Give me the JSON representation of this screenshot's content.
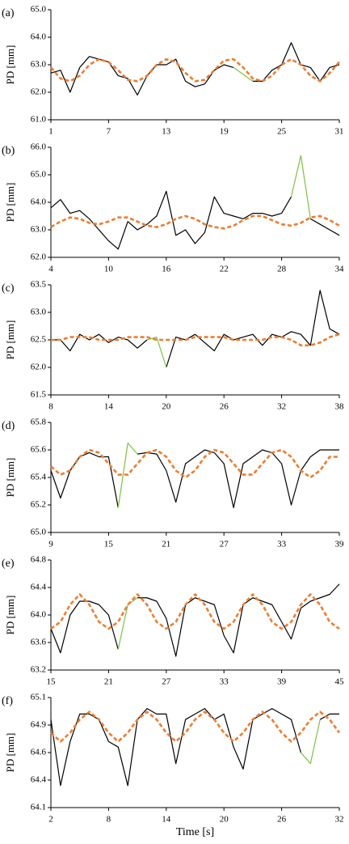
{
  "chart_data": [
    {
      "type": "line",
      "panel_label": "(a)",
      "ylabel": "PD [mm]",
      "x": [
        1,
        2,
        3,
        4,
        5,
        6,
        7,
        8,
        9,
        10,
        11,
        12,
        13,
        14,
        15,
        16,
        17,
        18,
        19,
        20,
        21,
        22,
        23,
        24,
        25,
        26,
        27,
        28,
        29,
        30,
        31
      ],
      "xlim": [
        1,
        31
      ],
      "xticks": [
        1,
        7,
        13,
        19,
        25,
        31
      ],
      "ylim": [
        61,
        65
      ],
      "yticks": [
        {
          "value": 61,
          "label": "61.0"
        },
        {
          "value": 62,
          "label": "62.0"
        },
        {
          "value": 63,
          "label": "63.0"
        },
        {
          "value": 64,
          "label": "64.0"
        },
        {
          "value": 65,
          "label": "65.0"
        }
      ],
      "series": [
        {
          "color": "#000000",
          "values": [
            62.7,
            62.8,
            62.0,
            62.9,
            63.3,
            63.2,
            63.1,
            62.6,
            62.5,
            61.9,
            62.6,
            63.0,
            63.0,
            63.2,
            62.4,
            62.2,
            62.3,
            62.8,
            63.0,
            62.9,
            null,
            62.4,
            62.4,
            62.8,
            63.0,
            63.8,
            63.0,
            62.9,
            62.4,
            62.9,
            63.0
          ]
        },
        {
          "color": "#7cc242",
          "values": [
            null,
            null,
            null,
            null,
            null,
            null,
            null,
            null,
            null,
            null,
            null,
            null,
            null,
            null,
            null,
            null,
            null,
            null,
            null,
            62.9,
            62.65,
            62.4,
            null,
            null,
            null,
            null,
            null,
            null,
            null,
            null,
            null
          ]
        },
        {
          "color": "#ed7d31",
          "dash": true,
          "values": [
            62.9,
            62.5,
            62.4,
            62.6,
            63.0,
            63.2,
            63.1,
            62.8,
            62.45,
            62.4,
            62.6,
            63.0,
            63.2,
            63.1,
            62.7,
            62.4,
            62.45,
            62.8,
            63.15,
            63.2,
            62.9,
            62.5,
            62.4,
            62.6,
            63.0,
            63.2,
            63.0,
            62.6,
            62.4,
            62.7,
            63.1
          ]
        }
      ]
    },
    {
      "type": "line",
      "panel_label": "(b)",
      "ylabel": "PD [mm]",
      "x": [
        4,
        5,
        6,
        7,
        8,
        9,
        10,
        11,
        12,
        13,
        14,
        15,
        16,
        17,
        18,
        19,
        20,
        21,
        22,
        23,
        24,
        25,
        26,
        27,
        28,
        29,
        30,
        31,
        32,
        33,
        34
      ],
      "xlim": [
        4,
        34
      ],
      "xticks": [
        4,
        10,
        16,
        22,
        28,
        34
      ],
      "ylim": [
        62,
        66
      ],
      "yticks": [
        {
          "value": 62,
          "label": "62.0"
        },
        {
          "value": 63,
          "label": "63.0"
        },
        {
          "value": 64,
          "label": "64.0"
        },
        {
          "value": 65,
          "label": "65.0"
        },
        {
          "value": 66,
          "label": "66.0"
        }
      ],
      "series": [
        {
          "color": "#000000",
          "values": [
            63.8,
            64.1,
            63.6,
            63.7,
            63.4,
            63.0,
            62.6,
            62.3,
            63.3,
            63.0,
            63.2,
            63.5,
            64.4,
            62.8,
            63.0,
            62.5,
            62.9,
            64.2,
            63.6,
            63.5,
            63.4,
            63.6,
            63.6,
            63.5,
            63.6,
            64.2,
            null,
            63.4,
            63.2,
            63.0,
            62.8
          ]
        },
        {
          "color": "#7cc242",
          "values": [
            null,
            null,
            null,
            null,
            null,
            null,
            null,
            null,
            null,
            null,
            null,
            null,
            null,
            null,
            null,
            null,
            null,
            null,
            null,
            null,
            null,
            null,
            null,
            null,
            null,
            64.2,
            65.7,
            63.4,
            null,
            null,
            null
          ]
        },
        {
          "color": "#ed7d31",
          "dash": true,
          "values": [
            63.1,
            63.3,
            63.45,
            63.4,
            63.25,
            63.2,
            63.3,
            63.45,
            63.45,
            63.3,
            63.15,
            63.1,
            63.2,
            63.4,
            63.5,
            63.4,
            63.2,
            63.1,
            63.05,
            63.15,
            63.35,
            63.5,
            63.5,
            63.35,
            63.2,
            63.15,
            63.25,
            63.45,
            63.5,
            63.35,
            63.15
          ]
        }
      ]
    },
    {
      "type": "line",
      "panel_label": "(c)",
      "ylabel": "PD [mm]",
      "x": [
        8,
        9,
        10,
        11,
        12,
        13,
        14,
        15,
        16,
        17,
        18,
        19,
        20,
        21,
        22,
        23,
        24,
        25,
        26,
        27,
        28,
        29,
        30,
        31,
        32,
        33,
        34,
        35,
        36,
        37,
        38
      ],
      "xlim": [
        8,
        38
      ],
      "xticks": [
        8,
        14,
        20,
        26,
        32,
        38
      ],
      "ylim": [
        61.5,
        63.5
      ],
      "yticks": [
        61.5,
        {
          "value": 62,
          "label": "62.0"
        },
        62.5,
        {
          "value": 63,
          "label": "63.0"
        },
        63.5
      ],
      "series": [
        {
          "color": "#000000",
          "values": [
            62.5,
            62.5,
            62.3,
            62.6,
            62.5,
            62.6,
            62.45,
            62.55,
            62.5,
            62.35,
            62.5,
            null,
            62.0,
            62.55,
            62.5,
            62.6,
            62.45,
            62.3,
            62.6,
            62.5,
            62.55,
            62.6,
            62.4,
            62.6,
            62.55,
            62.65,
            62.6,
            62.4,
            63.4,
            62.7,
            62.6
          ]
        },
        {
          "color": "#7cc242",
          "values": [
            null,
            null,
            null,
            null,
            null,
            null,
            null,
            null,
            null,
            null,
            62.5,
            62.55,
            62.0,
            null,
            null,
            null,
            null,
            null,
            null,
            null,
            null,
            null,
            null,
            null,
            null,
            null,
            null,
            null,
            null,
            null,
            null
          ]
        },
        {
          "color": "#ed7d31",
          "dash": true,
          "values": [
            62.5,
            62.5,
            62.55,
            62.55,
            62.55,
            62.5,
            62.5,
            62.5,
            62.55,
            62.55,
            62.55,
            62.5,
            62.5,
            62.5,
            62.5,
            62.55,
            62.55,
            62.55,
            62.55,
            62.5,
            62.5,
            62.5,
            62.5,
            62.55,
            62.55,
            62.5,
            62.4,
            62.4,
            62.45,
            62.55,
            62.6
          ]
        }
      ]
    },
    {
      "type": "line",
      "panel_label": "(d)",
      "ylabel": "PD [mm]",
      "x": [
        9,
        10,
        11,
        12,
        13,
        14,
        15,
        16,
        17,
        18,
        19,
        20,
        21,
        22,
        23,
        24,
        25,
        26,
        27,
        28,
        29,
        30,
        31,
        32,
        33,
        34,
        35,
        36,
        37,
        38,
        39
      ],
      "xlim": [
        9,
        39
      ],
      "xticks": [
        9,
        15,
        21,
        27,
        33,
        39
      ],
      "ylim": [
        65.0,
        65.8
      ],
      "yticks": [
        {
          "value": 65,
          "label": "65.0"
        },
        65.2,
        65.4,
        65.6,
        65.8
      ],
      "series": [
        {
          "color": "#000000",
          "values": [
            65.45,
            65.25,
            65.45,
            65.55,
            65.58,
            65.55,
            65.55,
            65.18,
            null,
            65.57,
            65.58,
            65.57,
            65.45,
            65.22,
            65.5,
            65.55,
            65.6,
            65.58,
            65.5,
            65.18,
            65.5,
            65.55,
            65.6,
            65.58,
            65.5,
            65.2,
            65.45,
            65.55,
            65.6,
            65.6,
            65.6
          ]
        },
        {
          "color": "#7cc242",
          "values": [
            null,
            null,
            null,
            null,
            null,
            null,
            null,
            65.18,
            65.65,
            65.57,
            null,
            null,
            null,
            null,
            null,
            null,
            null,
            null,
            null,
            null,
            null,
            null,
            null,
            null,
            null,
            null,
            null,
            null,
            null,
            null,
            null
          ]
        },
        {
          "color": "#ed7d31",
          "dash": true,
          "values": [
            65.48,
            65.42,
            65.45,
            65.55,
            65.6,
            65.58,
            65.5,
            65.42,
            65.42,
            65.5,
            65.58,
            65.6,
            65.55,
            65.45,
            65.4,
            65.45,
            65.55,
            65.6,
            65.58,
            65.5,
            65.42,
            65.42,
            65.5,
            65.58,
            65.6,
            65.55,
            65.45,
            65.4,
            65.45,
            65.55,
            65.55
          ]
        }
      ]
    },
    {
      "type": "line",
      "panel_label": "(e)",
      "ylabel": "PD [mm]",
      "x": [
        15,
        16,
        17,
        18,
        19,
        20,
        21,
        22,
        23,
        24,
        25,
        26,
        27,
        28,
        29,
        30,
        31,
        32,
        33,
        34,
        35,
        36,
        37,
        38,
        39,
        40,
        41,
        42,
        43,
        44,
        45
      ],
      "xlim": [
        15,
        45
      ],
      "xticks": [
        15,
        21,
        27,
        33,
        39,
        45
      ],
      "ylim": [
        63.2,
        64.8
      ],
      "yticks": [
        63.2,
        63.6,
        {
          "value": 64,
          "label": "64.0"
        },
        64.4,
        64.8
      ],
      "series": [
        {
          "color": "#000000",
          "values": [
            63.8,
            63.45,
            64.0,
            64.2,
            64.2,
            64.15,
            64.0,
            63.5,
            null,
            64.25,
            64.25,
            64.2,
            63.95,
            63.4,
            64.15,
            64.25,
            64.2,
            64.15,
            63.7,
            63.45,
            64.15,
            64.25,
            64.2,
            64.15,
            63.9,
            63.65,
            64.1,
            64.2,
            64.25,
            64.3,
            64.45
          ]
        },
        {
          "color": "#7cc242",
          "values": [
            null,
            null,
            null,
            null,
            null,
            null,
            null,
            63.5,
            64.15,
            64.25,
            null,
            null,
            null,
            null,
            null,
            null,
            null,
            null,
            null,
            null,
            null,
            null,
            null,
            null,
            null,
            null,
            null,
            null,
            null,
            null,
            null
          ]
        },
        {
          "color": "#ed7d31",
          "dash": true,
          "values": [
            63.8,
            63.9,
            64.15,
            64.3,
            64.15,
            63.9,
            63.8,
            63.9,
            64.15,
            64.3,
            64.15,
            63.9,
            63.8,
            63.9,
            64.15,
            64.3,
            64.15,
            63.9,
            63.8,
            63.9,
            64.15,
            64.3,
            64.15,
            63.9,
            63.8,
            63.9,
            64.15,
            64.3,
            64.15,
            63.9,
            63.8
          ]
        }
      ]
    },
    {
      "type": "line",
      "panel_label": "(f)",
      "ylabel": "PD [mm]",
      "xlabel": "Time [s]",
      "x": [
        2,
        3,
        4,
        5,
        6,
        7,
        8,
        9,
        10,
        11,
        12,
        13,
        14,
        15,
        16,
        17,
        18,
        19,
        20,
        21,
        22,
        23,
        24,
        25,
        26,
        27,
        28,
        29,
        30,
        31,
        32
      ],
      "xlim": [
        2,
        32
      ],
      "xticks": [
        2,
        8,
        14,
        20,
        26,
        32
      ],
      "ylim": [
        64.1,
        65.1
      ],
      "yticks": [
        64.1,
        {
          "value": 64.35,
          "label": "64.4"
        },
        64.6,
        {
          "value": 64.85,
          "label": "64.9"
        },
        65.1
      ],
      "series": [
        {
          "color": "#000000",
          "values": [
            64.9,
            64.3,
            64.7,
            64.95,
            64.95,
            64.9,
            64.7,
            64.65,
            64.3,
            64.9,
            65.0,
            64.95,
            64.95,
            64.5,
            64.9,
            64.95,
            65.0,
            64.9,
            64.95,
            64.65,
            64.45,
            64.9,
            64.95,
            65.0,
            64.95,
            64.9,
            64.6,
            null,
            64.9,
            64.95,
            64.95
          ]
        },
        {
          "color": "#7cc242",
          "values": [
            null,
            null,
            null,
            null,
            null,
            null,
            null,
            null,
            null,
            null,
            null,
            null,
            null,
            null,
            null,
            null,
            null,
            null,
            null,
            null,
            null,
            null,
            null,
            null,
            null,
            null,
            64.6,
            64.5,
            64.9,
            null,
            null
          ]
        },
        {
          "color": "#ed7d31",
          "dash": true,
          "values": [
            64.78,
            64.7,
            64.78,
            64.9,
            64.97,
            64.9,
            64.78,
            64.7,
            64.78,
            64.9,
            64.97,
            64.9,
            64.78,
            64.7,
            64.78,
            64.9,
            64.97,
            64.9,
            64.78,
            64.7,
            64.78,
            64.9,
            64.97,
            64.9,
            64.78,
            64.7,
            64.78,
            64.9,
            64.97,
            64.9,
            64.78
          ]
        }
      ]
    }
  ]
}
